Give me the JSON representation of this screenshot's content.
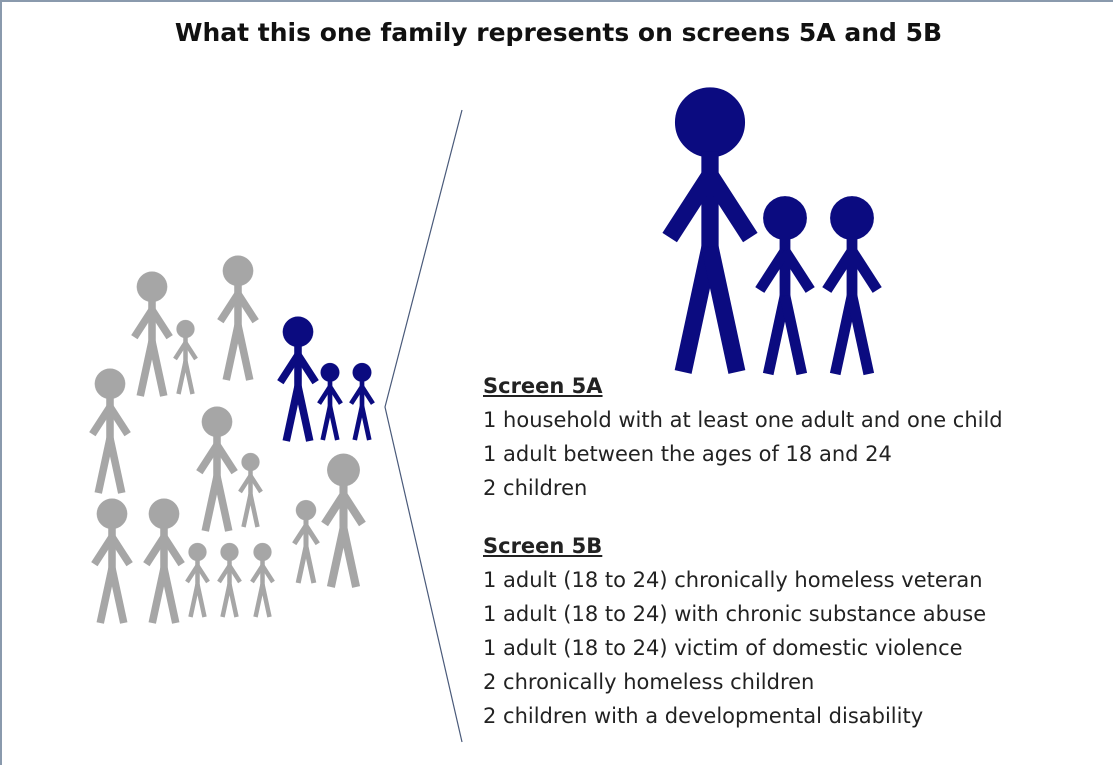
{
  "title": "What this one family represents on screens 5A and 5B",
  "screens": [
    {
      "heading": "Screen 5A",
      "items": [
        "1 household with at least one adult and one child",
        "1 adult between the ages of 18 and 24",
        "2 children"
      ]
    },
    {
      "heading": "Screen 5B",
      "items": [
        "1 adult (18 to 24) chronically homeless veteran",
        "1 adult (18 to 24) with chronic substance abuse",
        "1 adult (18 to 24) victim of domestic violence",
        "2 chronically homeless children",
        "2 children with a developmental disability"
      ]
    }
  ]
}
